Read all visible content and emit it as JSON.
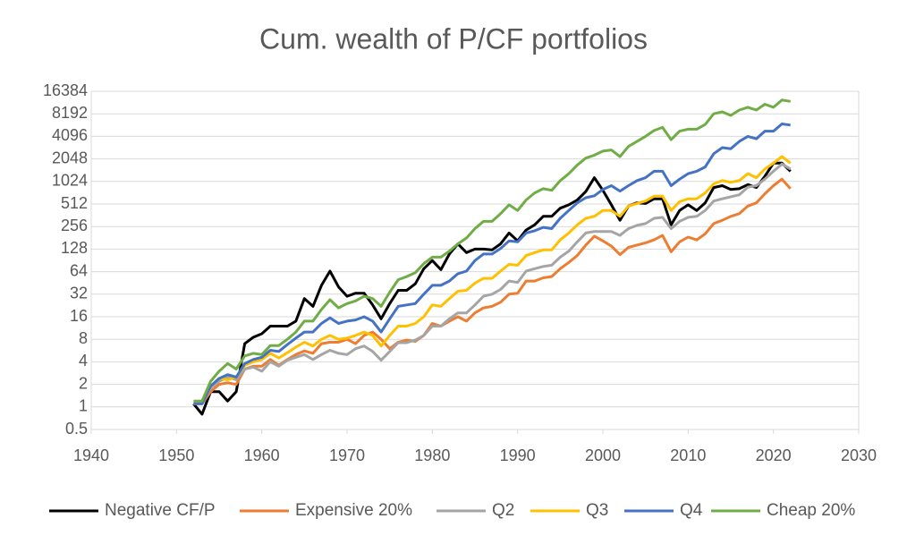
{
  "chart_data": {
    "type": "line",
    "title": "Cum. wealth of P/CF portfolios",
    "x": [
      1952,
      1953,
      1954,
      1955,
      1956,
      1957,
      1958,
      1959,
      1960,
      1961,
      1962,
      1963,
      1964,
      1965,
      1966,
      1967,
      1968,
      1969,
      1970,
      1971,
      1972,
      1973,
      1974,
      1975,
      1976,
      1977,
      1978,
      1979,
      1980,
      1981,
      1982,
      1983,
      1984,
      1985,
      1986,
      1987,
      1988,
      1989,
      1990,
      1991,
      1992,
      1993,
      1994,
      1995,
      1996,
      1997,
      1998,
      1999,
      2000,
      2001,
      2002,
      2003,
      2004,
      2005,
      2006,
      2007,
      2008,
      2009,
      2010,
      2011,
      2012,
      2013,
      2014,
      2015,
      2016,
      2017,
      2018,
      2019,
      2020,
      2021,
      2022
    ],
    "series": [
      {
        "name": "Negative CF/P",
        "color": "#000000",
        "values": [
          1.1,
          0.8,
          1.6,
          1.6,
          1.2,
          1.6,
          7,
          8.5,
          9.5,
          12,
          12,
          12,
          14,
          28,
          22,
          42,
          65,
          40,
          30,
          33,
          33,
          23,
          15,
          24,
          36,
          36,
          44,
          70,
          90,
          68,
          110,
          150,
          115,
          128,
          128,
          125,
          150,
          210,
          165,
          230,
          270,
          350,
          350,
          450,
          500,
          580,
          750,
          1150,
          780,
          500,
          310,
          480,
          530,
          520,
          600,
          600,
          270,
          420,
          500,
          420,
          530,
          850,
          900,
          800,
          820,
          930,
          850,
          1200,
          1800,
          1800,
          1400
        ]
      },
      {
        "name": "Expensive 20%",
        "color": "#ed7d31",
        "values": [
          1.1,
          1.1,
          1.6,
          2.0,
          2.1,
          2.0,
          3.2,
          3.5,
          3.5,
          4.3,
          3.6,
          4.3,
          5,
          5.6,
          5.2,
          7,
          7.3,
          7.3,
          8,
          7,
          9,
          10,
          8,
          6,
          7.3,
          7.8,
          7.5,
          9,
          13,
          12,
          14,
          16,
          14,
          18,
          21,
          22,
          25,
          32,
          33,
          48,
          48,
          53,
          55,
          70,
          85,
          105,
          145,
          190,
          165,
          140,
          108,
          135,
          145,
          155,
          170,
          195,
          118,
          160,
          185,
          170,
          205,
          280,
          310,
          350,
          380,
          480,
          530,
          700,
          900,
          1100,
          820
        ]
      },
      {
        "name": "Q2",
        "color": "#a5a5a5",
        "values": [
          1.1,
          1.1,
          1.8,
          2.2,
          2.5,
          2.3,
          3.2,
          3.4,
          3,
          4,
          3.5,
          4.2,
          4.6,
          5,
          4.3,
          5,
          5.7,
          5.2,
          5,
          6,
          6.5,
          5.5,
          4.2,
          5.5,
          7.2,
          7.2,
          7.8,
          9,
          12,
          12,
          15,
          18,
          18,
          23,
          30,
          32,
          37,
          48,
          46,
          65,
          70,
          75,
          78,
          100,
          120,
          160,
          210,
          220,
          220,
          220,
          195,
          240,
          265,
          280,
          330,
          340,
          240,
          300,
          340,
          350,
          420,
          560,
          600,
          640,
          680,
          860,
          900,
          1100,
          1400,
          1750,
          1500
        ]
      },
      {
        "name": "Q3",
        "color": "#ffc000",
        "values": [
          1.1,
          1.1,
          1.9,
          2.4,
          2.3,
          2.5,
          3.6,
          4,
          4.3,
          5.2,
          4.5,
          5.3,
          6.3,
          7.3,
          6.5,
          8,
          9,
          8,
          8.3,
          9,
          10,
          9,
          6.5,
          9,
          12,
          12,
          13,
          16,
          23,
          22,
          28,
          35,
          36,
          45,
          52,
          52,
          65,
          80,
          78,
          105,
          115,
          125,
          125,
          170,
          210,
          270,
          330,
          350,
          420,
          420,
          350,
          480,
          520,
          560,
          650,
          650,
          420,
          550,
          600,
          600,
          720,
          950,
          1050,
          1000,
          1050,
          1300,
          1150,
          1500,
          1800,
          2200,
          1800
        ]
      },
      {
        "name": "Q4",
        "color": "#4472c4",
        "values": [
          1.1,
          1.1,
          1.9,
          2.4,
          2.7,
          2.5,
          3.8,
          4.3,
          4.6,
          5.7,
          5.5,
          6.8,
          8.3,
          10,
          10,
          13,
          15.5,
          13,
          14,
          14.5,
          16,
          14,
          10,
          15,
          22,
          23,
          24,
          32,
          42,
          42,
          48,
          60,
          65,
          90,
          110,
          110,
          130,
          165,
          160,
          210,
          225,
          250,
          240,
          330,
          420,
          530,
          620,
          660,
          800,
          900,
          760,
          900,
          1050,
          1150,
          1400,
          1400,
          900,
          1100,
          1300,
          1400,
          1600,
          2400,
          2900,
          2800,
          3500,
          4100,
          3800,
          4800,
          4800,
          6000,
          5800
        ]
      },
      {
        "name": "Cheap 20%",
        "color": "#70ad47",
        "values": [
          1.2,
          1.2,
          2.2,
          3,
          3.8,
          3.2,
          4.8,
          5.2,
          5,
          6.6,
          6.6,
          8,
          10,
          14,
          14,
          20,
          27,
          21,
          24,
          26,
          30,
          28,
          22,
          34,
          50,
          55,
          62,
          82,
          100,
          100,
          120,
          150,
          180,
          240,
          300,
          300,
          380,
          500,
          420,
          580,
          720,
          820,
          780,
          1050,
          1300,
          1700,
          2100,
          2300,
          2600,
          2700,
          2200,
          3000,
          3500,
          4100,
          4900,
          5400,
          3700,
          4800,
          5100,
          5100,
          5900,
          8200,
          8700,
          7800,
          9200,
          10000,
          9200,
          11000,
          10000,
          12500,
          12000
        ]
      }
    ],
    "xlim": [
      1940,
      2030
    ],
    "xticks": [
      1940,
      1950,
      1960,
      1970,
      1980,
      1990,
      2000,
      2010,
      2020,
      2030
    ],
    "ylim": [
      0.5,
      16384
    ],
    "yticks": [
      0.5,
      1,
      2,
      4,
      8,
      16,
      32,
      64,
      128,
      256,
      512,
      1024,
      2048,
      4096,
      8192,
      16384
    ],
    "log_base": 2,
    "grid": true,
    "legend": "bottom"
  }
}
